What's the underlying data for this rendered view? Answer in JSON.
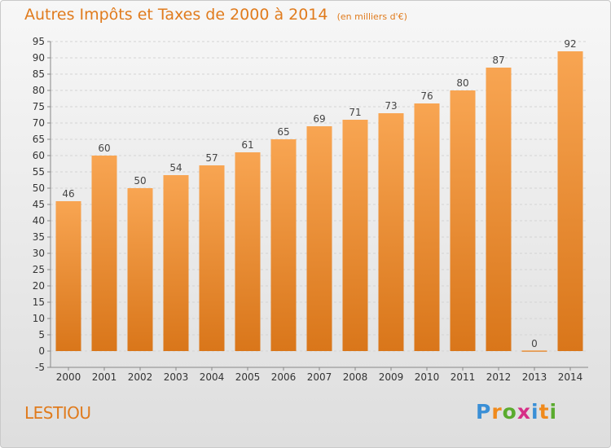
{
  "title": "Autres Impôts et Taxes de 2000 à 2014",
  "subtitle": "(en milliers d'€)",
  "place": "LESTIOU",
  "brand": {
    "letters": [
      "P",
      "r",
      "o",
      "x",
      "i",
      "t",
      "i"
    ],
    "colors": [
      "#3a8fd6",
      "#f08a1c",
      "#5aab2e",
      "#d62f87",
      "#3a8fd6",
      "#f08a1c",
      "#5aab2e"
    ]
  },
  "colors": {
    "accent": "#e07b1d",
    "bar_light": "#f7a452",
    "bar_dark": "#d9761a"
  },
  "chart_data": {
    "type": "bar",
    "categories": [
      "2000",
      "2001",
      "2002",
      "2003",
      "2004",
      "2005",
      "2006",
      "2007",
      "2008",
      "2009",
      "2010",
      "2011",
      "2012",
      "2013",
      "2014"
    ],
    "values": [
      46,
      60,
      50,
      54,
      57,
      61,
      65,
      69,
      71,
      73,
      76,
      80,
      87,
      0,
      92
    ],
    "ylim": [
      -5,
      95
    ],
    "yticks": [
      -5,
      0,
      5,
      10,
      15,
      20,
      25,
      30,
      35,
      40,
      45,
      50,
      55,
      60,
      65,
      70,
      75,
      80,
      85,
      90,
      95
    ],
    "grid": true,
    "title": "Autres Impôts et Taxes de 2000 à 2014",
    "xlabel": "",
    "ylabel": ""
  }
}
